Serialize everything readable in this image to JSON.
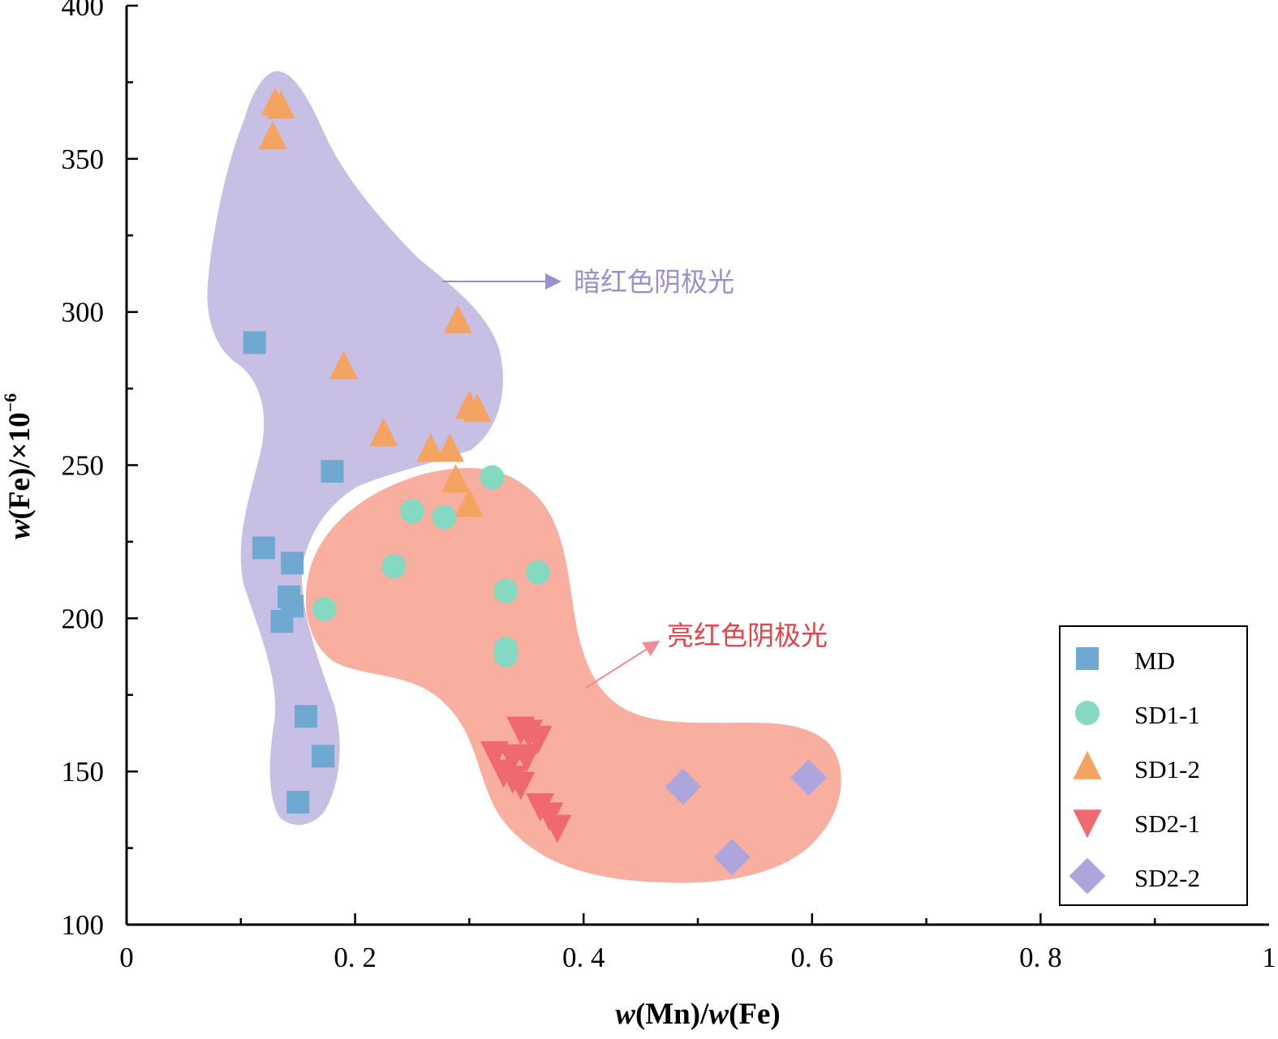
{
  "chart_data": {
    "type": "scatter",
    "xlabel": "w(Mn)/w(Fe)",
    "ylabel": "w(Fe)/×10",
    "ylabel_exponent": "−6",
    "xlim": [
      0,
      1
    ],
    "ylim": [
      100,
      400
    ],
    "x_major_ticks": [
      0,
      0.2,
      0.4,
      0.6,
      0.8,
      1
    ],
    "x_tick_labels": [
      "0",
      "0. 2",
      "0. 4",
      "0. 6",
      "0. 8",
      "1"
    ],
    "y_major_ticks": [
      100,
      150,
      200,
      250,
      300,
      350,
      400
    ],
    "y_tick_labels": [
      "100",
      "150",
      "200",
      "250",
      "300",
      "350",
      "400"
    ],
    "grid": false,
    "legend_position": "bottom-right",
    "series": [
      {
        "name": "MD",
        "marker": "square",
        "color": "#6FA8D1",
        "points": [
          [
            0.112,
            290
          ],
          [
            0.12,
            223
          ],
          [
            0.145,
            218
          ],
          [
            0.18,
            248
          ],
          [
            0.142,
            207
          ],
          [
            0.145,
            204
          ],
          [
            0.136,
            199
          ],
          [
            0.157,
            168
          ],
          [
            0.172,
            155
          ],
          [
            0.15,
            140
          ]
        ]
      },
      {
        "name": "SD1-1",
        "marker": "circle",
        "color": "#86D9C1",
        "points": [
          [
            0.32,
            246
          ],
          [
            0.25,
            235
          ],
          [
            0.278,
            233
          ],
          [
            0.234,
            217
          ],
          [
            0.36,
            215
          ],
          [
            0.332,
            209
          ],
          [
            0.173,
            203
          ],
          [
            0.332,
            190
          ],
          [
            0.332,
            188
          ]
        ]
      },
      {
        "name": "SD1-2",
        "marker": "triangle-up",
        "color": "#F4A460",
        "points": [
          [
            0.13,
            368
          ],
          [
            0.135,
            367
          ],
          [
            0.128,
            357
          ],
          [
            0.29,
            297
          ],
          [
            0.19,
            282
          ],
          [
            0.3,
            269
          ],
          [
            0.307,
            268
          ],
          [
            0.225,
            260
          ],
          [
            0.266,
            255
          ],
          [
            0.283,
            255
          ],
          [
            0.288,
            245
          ],
          [
            0.3,
            237
          ]
        ]
      },
      {
        "name": "SD2-1",
        "marker": "triangle-down",
        "color": "#EF6A6E",
        "points": [
          [
            0.345,
            164
          ],
          [
            0.352,
            163
          ],
          [
            0.36,
            161
          ],
          [
            0.322,
            156
          ],
          [
            0.338,
            155
          ],
          [
            0.35,
            155
          ],
          [
            0.33,
            150
          ],
          [
            0.338,
            148
          ],
          [
            0.345,
            146
          ],
          [
            0.362,
            139
          ],
          [
            0.37,
            136
          ],
          [
            0.377,
            132
          ]
        ]
      },
      {
        "name": "SD2-2",
        "marker": "diamond",
        "color": "#AEA5DD",
        "points": [
          [
            0.487,
            145
          ],
          [
            0.597,
            148
          ],
          [
            0.53,
            122
          ]
        ]
      }
    ],
    "regions": [
      {
        "label": "暗红色阴极光",
        "fill": "#C8BFE5",
        "label_color": "#9C8FD0"
      },
      {
        "label": "亮红色阴极光",
        "fill": "#F8AFA0",
        "label_color": "#E8434B"
      }
    ]
  }
}
